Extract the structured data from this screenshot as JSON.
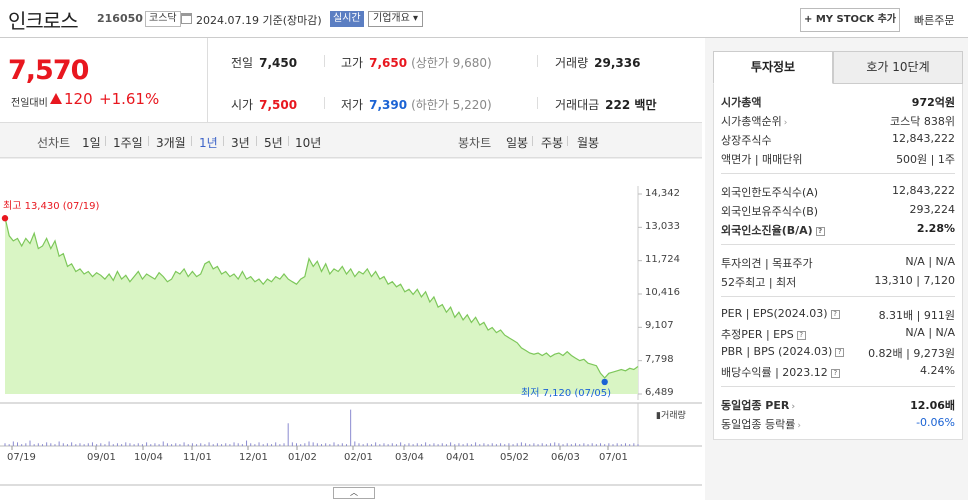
{
  "header": {
    "name": "인크로스",
    "code": "216050",
    "market": "코스닥",
    "asof": "2024.07.19  기준(장마감)",
    "realtime": "실시간",
    "overview": "기업개요 ▾",
    "mystock": "+ MY STOCK 추가",
    "quick_order": "빠른주문"
  },
  "price": {
    "current": "7,570",
    "change_label": "전일대비",
    "change": "120",
    "change_pct": "+1.61%"
  },
  "stats": {
    "prev_close_label": "전일",
    "prev_close": "7,450",
    "high_label": "고가",
    "high": "7,650",
    "upper_limit": "(상한가 9,680)",
    "volume_label": "거래량",
    "volume": "29,336",
    "open_label": "시가",
    "open": "7,500",
    "low_label": "저가",
    "low": "7,390",
    "lower_limit": "(하한가 5,220)",
    "amount_label": "거래대금",
    "amount": "222 백만"
  },
  "periods": {
    "line_label": "선차트",
    "items": [
      "1일",
      "1주일",
      "3개월",
      "1년",
      "3년",
      "5년",
      "10년"
    ],
    "active": "1년",
    "candle_label": "봉차트",
    "candle_items": [
      "일봉",
      "주봉",
      "월봉"
    ]
  },
  "chart_data": {
    "type": "area",
    "title": "",
    "ylim": [
      6489,
      14342
    ],
    "y_ticks": [
      "14,342",
      "13,033",
      "11,724",
      "10,416",
      "9,107",
      "7,798",
      "6,489"
    ],
    "x_ticks": [
      "07/19",
      "09/01",
      "10/04",
      "11/01",
      "12/01",
      "01/02",
      "02/01",
      "03/04",
      "04/01",
      "05/02",
      "06/03",
      "07/01"
    ],
    "high_label": "최고 13,430 (07/19)",
    "low_label": "최저 7,120 (07/05)",
    "volume_legend": "거래량",
    "series": [
      {
        "values": [
          13430,
          12700,
          12500,
          12600,
          12300,
          12600,
          12400,
          12800,
          12200,
          12300,
          12600,
          12200,
          12500,
          11900,
          12000,
          11500,
          11600,
          11300,
          11400,
          11200,
          11300,
          11100,
          11250,
          11150,
          11000,
          11200,
          10950,
          11300,
          11000,
          11150,
          10900,
          11100,
          11300,
          11000,
          11200,
          11100,
          11000,
          11250,
          11100,
          10900,
          11000,
          11300,
          11200,
          11400,
          11100,
          11300,
          11100,
          11200,
          11600,
          11700,
          11400,
          11500,
          11200,
          11300,
          11100,
          11200,
          11000,
          11300,
          11000,
          11100,
          10900,
          11000,
          10800,
          11000,
          10900,
          11100,
          11000,
          11200,
          11000,
          10900,
          10800,
          11000,
          11100,
          11800,
          11500,
          11700,
          11300,
          11600,
          11200,
          11400,
          11300,
          11500,
          11200,
          11400,
          11100,
          11300,
          11200,
          11400,
          11100,
          11300,
          11000,
          11100,
          10800,
          10900,
          10700,
          10800,
          10500,
          10600,
          10400,
          10600,
          10300,
          10500,
          10100,
          10300,
          9900,
          10000,
          9700,
          9900,
          9500,
          9700,
          9400,
          9600,
          9300,
          9500,
          9200,
          9300,
          9000,
          9100,
          8900,
          9000,
          8800,
          8700,
          8600,
          8500,
          8300,
          8200,
          8100,
          8050,
          8100,
          8000,
          8100,
          7950,
          8050,
          8100,
          8000,
          8150,
          8000,
          7900,
          7800,
          7850,
          7700,
          7650,
          7600,
          7300,
          7120,
          7300,
          7350,
          7400,
          7450,
          7400,
          7500,
          7450,
          7570
        ]
      }
    ],
    "volume": [
      3,
      2,
      5,
      4,
      2,
      3,
      6,
      2,
      3,
      2,
      4,
      3,
      2,
      5,
      3,
      2,
      4,
      2,
      3,
      2,
      3,
      4,
      2,
      3,
      2,
      5,
      2,
      3,
      2,
      4,
      3,
      2,
      3,
      2,
      4,
      2,
      3,
      2,
      5,
      3,
      2,
      3,
      2,
      4,
      2,
      3,
      2,
      3,
      2,
      4,
      2,
      3,
      2,
      3,
      2,
      4,
      3,
      2,
      6,
      3,
      2,
      4,
      2,
      3,
      2,
      4,
      2,
      3,
      25,
      4,
      3,
      2,
      3,
      5,
      4,
      3,
      2,
      3,
      2,
      4,
      2,
      3,
      2,
      40,
      5,
      3,
      2,
      3,
      2,
      4,
      2,
      3,
      2,
      3,
      2,
      4,
      2,
      3,
      2,
      3,
      2,
      4,
      2,
      3,
      2,
      3,
      2,
      4,
      2,
      3,
      2,
      3,
      2,
      4,
      2,
      3,
      2,
      3,
      2,
      3,
      2,
      3,
      2,
      3,
      4,
      3,
      2,
      3,
      2,
      3,
      2,
      3,
      4,
      3,
      2,
      3,
      2,
      3,
      2,
      3,
      2,
      3,
      2,
      3,
      2,
      3,
      2,
      3,
      2,
      3,
      2,
      3,
      2
    ]
  },
  "side": {
    "tab_invest": "투자정보",
    "tab_quote": "호가 10단계",
    "rows": [
      {
        "k": "시가총액",
        "v": "972억원"
      },
      {
        "k": "시가총액순위",
        "v": "코스닥 838위"
      },
      {
        "k": "상장주식수",
        "v": "12,843,222"
      },
      {
        "k": "액면가 | 매매단위",
        "v": "500원 | 1주"
      },
      {
        "k": "외국인한도주식수(A)",
        "v": "12,843,222"
      },
      {
        "k": "외국인보유주식수(B)",
        "v": "293,224"
      },
      {
        "k": "외국인소진율(B/A)",
        "v": "2.28%"
      },
      {
        "k": "투자의견 | 목표주가",
        "v": "N/A | N/A"
      },
      {
        "k": "52주최고 | 최저",
        "v": "13,310 | 7,120"
      },
      {
        "k": "PER | EPS(2024.03)",
        "v": "8.31배 | 911원"
      },
      {
        "k": "추정PER | EPS",
        "v": "N/A | N/A"
      },
      {
        "k": "PBR | BPS (2024.03)",
        "v": "0.82배 | 9,273원"
      },
      {
        "k": "배당수익률 | 2023.12",
        "v": "4.24%"
      },
      {
        "k": "동일업종 PER",
        "v": "12.06배"
      },
      {
        "k": "동일업종 등락률",
        "v": "-0.06%"
      }
    ]
  },
  "colors": {
    "up": "#e8171f",
    "down": "#1b63d4",
    "area_fill": "#d9f5c4",
    "area_line": "#7dc75a"
  }
}
